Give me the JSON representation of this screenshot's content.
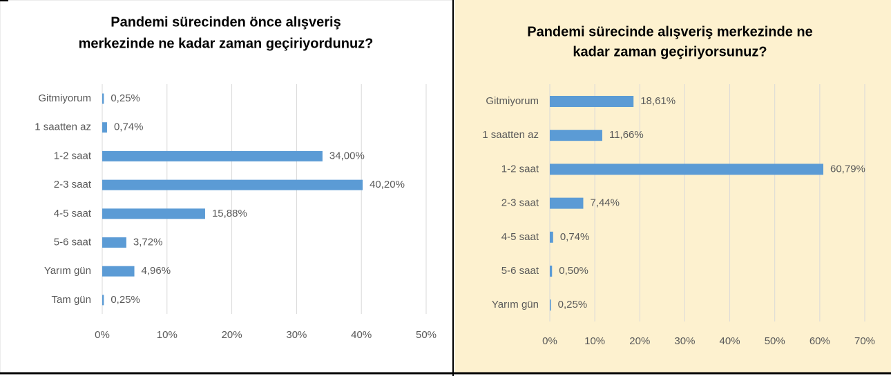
{
  "chart_data": [
    {
      "type": "bar",
      "orientation": "horizontal",
      "title": [
        "Pandemi sürecinden önce alışveriş",
        "merkezinde ne kadar zaman geçiriyordunuz?"
      ],
      "categories": [
        "Gitmiyorum",
        "1 saatten az",
        "1-2 saat",
        "2-3 saat",
        "4-5 saat",
        "5-6 saat",
        "Yarım gün",
        "Tam gün"
      ],
      "values": [
        0.25,
        0.74,
        34.0,
        40.2,
        15.88,
        3.72,
        4.96,
        0.25
      ],
      "value_labels": [
        "0,25%",
        "0,74%",
        "34,00%",
        "40,20%",
        "15,88%",
        "3,72%",
        "4,96%",
        "0,25%"
      ],
      "color": "#5b9bd5",
      "background": "#ffffff",
      "xlim": [
        0,
        50
      ],
      "xticks": [
        {
          "value": 0,
          "label": "0%"
        },
        {
          "value": 10,
          "label": "10%"
        },
        {
          "value": 20,
          "label": "20%"
        },
        {
          "value": 30,
          "label": "30%"
        },
        {
          "value": 40,
          "label": "40%"
        },
        {
          "value": 50,
          "label": "50%"
        }
      ],
      "grid": true
    },
    {
      "type": "bar",
      "orientation": "horizontal",
      "title": [
        "Pandemi sürecinde alışveriş merkezinde ne",
        "kadar zaman geçiriyorsunuz?"
      ],
      "categories": [
        "Gitmiyorum",
        "1 saatten az",
        "1-2 saat",
        "2-3 saat",
        "4-5 saat",
        "5-6 saat",
        "Yarım gün"
      ],
      "values": [
        18.61,
        11.66,
        60.79,
        7.44,
        0.74,
        0.5,
        0.25
      ],
      "value_labels": [
        "18,61%",
        "11,66%",
        "60,79%",
        "7,44%",
        "0,74%",
        "0,50%",
        "0,25%"
      ],
      "color": "#5b9bd5",
      "background": "#fdf1cf",
      "xlim": [
        0,
        70
      ],
      "xticks": [
        {
          "value": 0,
          "label": "0%"
        },
        {
          "value": 10,
          "label": "10%"
        },
        {
          "value": 20,
          "label": "20%"
        },
        {
          "value": 30,
          "label": "30%"
        },
        {
          "value": 40,
          "label": "40%"
        },
        {
          "value": 50,
          "label": "50%"
        },
        {
          "value": 60,
          "label": "60%"
        },
        {
          "value": 70,
          "label": "70%"
        }
      ],
      "grid": true
    }
  ]
}
